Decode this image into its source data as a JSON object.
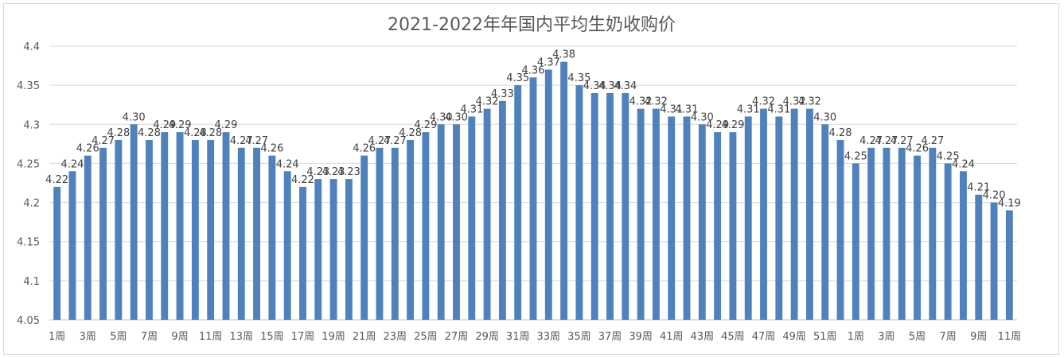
{
  "chart_data": {
    "type": "bar",
    "title": "2021-2022年年国内平均生奶收购价",
    "xlabel": "",
    "ylabel": "",
    "ylim": [
      4.05,
      4.4
    ],
    "yticks": [
      "4.05",
      "4.1",
      "4.15",
      "4.2",
      "4.25",
      "4.3",
      "4.35",
      "4.4"
    ],
    "grid": true,
    "legend": "none",
    "bar_color": "#4f81bd",
    "categories": [
      "1周",
      "2周",
      "3周",
      "4周",
      "5周",
      "6周",
      "7周",
      "8周",
      "9周",
      "10周",
      "11周",
      "12周",
      "13周",
      "14周",
      "15周",
      "16周",
      "17周",
      "18周",
      "19周",
      "20周",
      "21周",
      "22周",
      "23周",
      "24周",
      "25周",
      "26周",
      "27周",
      "28周",
      "29周",
      "30周",
      "31周",
      "32周",
      "33周",
      "34周",
      "35周",
      "36周",
      "37周",
      "38周",
      "39周",
      "40周",
      "41周",
      "42周",
      "43周",
      "44周",
      "45周",
      "46周",
      "47周",
      "48周",
      "49周",
      "50周",
      "51周",
      "52周",
      "1周",
      "2周",
      "3周",
      "4周",
      "5周",
      "6周",
      "7周",
      "8周",
      "9周",
      "10周",
      "11周"
    ],
    "tick_labels": [
      "1周",
      "",
      "3周",
      "",
      "5周",
      "",
      "7周",
      "",
      "9周",
      "",
      "11周",
      "",
      "13周",
      "",
      "15周",
      "",
      "17周",
      "",
      "19周",
      "",
      "21周",
      "",
      "23周",
      "",
      "25周",
      "",
      "27周",
      "",
      "29周",
      "",
      "31周",
      "",
      "33周",
      "",
      "35周",
      "",
      "37周",
      "",
      "39周",
      "",
      "41周",
      "",
      "43周",
      "",
      "45周",
      "",
      "47周",
      "",
      "49周",
      "",
      "51周",
      "",
      "1周",
      "",
      "3周",
      "",
      "5周",
      "",
      "7周",
      "",
      "9周",
      "",
      "11周"
    ],
    "values": [
      4.22,
      4.24,
      4.26,
      4.27,
      4.28,
      4.3,
      4.28,
      4.29,
      4.29,
      4.28,
      4.28,
      4.29,
      4.27,
      4.27,
      4.26,
      4.24,
      4.22,
      4.23,
      4.23,
      4.23,
      4.26,
      4.27,
      4.27,
      4.28,
      4.29,
      4.3,
      4.3,
      4.31,
      4.32,
      4.33,
      4.35,
      4.36,
      4.37,
      4.38,
      4.35,
      4.34,
      4.34,
      4.34,
      4.32,
      4.32,
      4.31,
      4.31,
      4.3,
      4.29,
      4.29,
      4.31,
      4.32,
      4.31,
      4.32,
      4.32,
      4.3,
      4.28,
      4.25,
      4.27,
      4.27,
      4.27,
      4.26,
      4.27,
      4.25,
      4.24,
      4.21,
      4.2,
      4.19
    ],
    "data_labels": [
      "4.22",
      "4.24",
      "4.26",
      "4.27",
      "4.28",
      "4.30",
      "4.28",
      "4.29",
      "4.29",
      "4.28",
      "4.28",
      "4.29",
      "4.27",
      "4.27",
      "4.26",
      "4.24",
      "4.22",
      "4.23",
      "4.23",
      "4.23",
      "4.26",
      "4.27",
      "4.27",
      "4.28",
      "4.29",
      "4.30",
      "4.30",
      "4.31",
      "4.32",
      "4.33",
      "4.35",
      "4.36",
      "4.37",
      "4.38",
      "4.35",
      "4.34",
      "4.34",
      "4.34",
      "4.32",
      "4.32",
      "4.31",
      "4.31",
      "4.30",
      "4.29",
      "4.29",
      "4.31",
      "4.32",
      "4.31",
      "4.32",
      "4.32",
      "4.30",
      "4.28",
      "4.25",
      "4.27",
      "4.27",
      "4.27",
      "4.26",
      "4.27",
      "4.25",
      "4.24",
      "4.21",
      "4.20",
      "4.19"
    ]
  }
}
